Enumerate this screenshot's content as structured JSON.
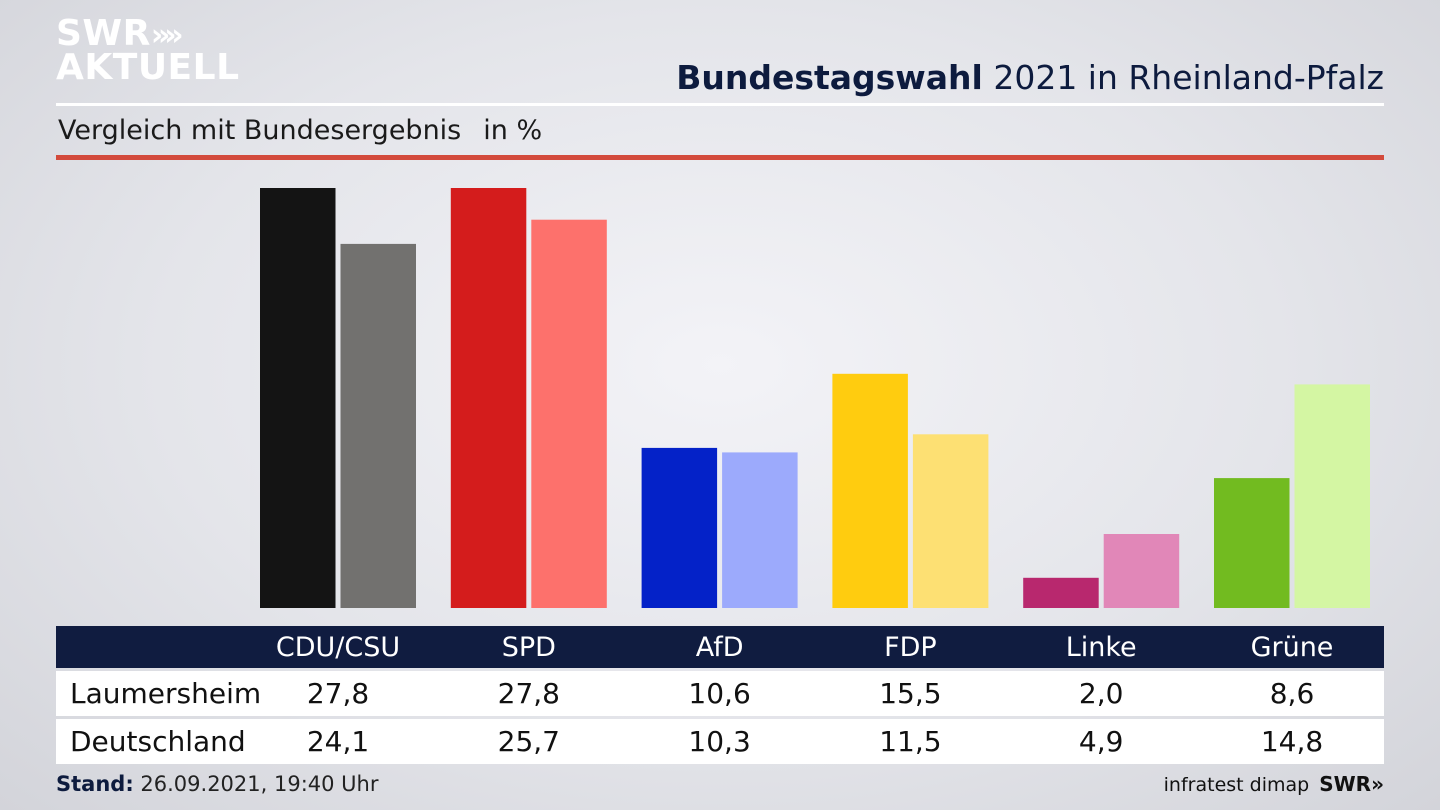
{
  "logo": {
    "line1": "SWR",
    "arrows": "»",
    "line2": "AKTUELL"
  },
  "title": {
    "bold": "Bundestagswahl",
    "rest": " 2021 in Rheinland-Pfalz"
  },
  "subtitle": "Vergleich mit Bundesergebnis",
  "unit": "in %",
  "chart_data": {
    "type": "bar",
    "categories": [
      "CDU/CSU",
      "SPD",
      "AfD",
      "FDP",
      "Linke",
      "Grüne"
    ],
    "series": [
      {
        "name": "Laumersheim",
        "values": [
          27.8,
          27.8,
          10.6,
          15.5,
          2.0,
          8.6
        ],
        "colors": [
          "#141414",
          "#d41c1c",
          "#0422c8",
          "#ffcc0f",
          "#b8286e",
          "#72bb20"
        ]
      },
      {
        "name": "Deutschland",
        "values": [
          24.1,
          25.7,
          10.3,
          11.5,
          4.9,
          14.8
        ],
        "colors": [
          "#72716f",
          "#fd716c",
          "#9caafc",
          "#fde073",
          "#e187b8",
          "#d4f6a3"
        ]
      }
    ],
    "ylim": [
      0,
      27.8
    ]
  },
  "table": {
    "rows": [
      {
        "label": "Laumersheim",
        "values": [
          "27,8",
          "27,8",
          "10,6",
          "15,5",
          "2,0",
          "8,6"
        ]
      },
      {
        "label": "Deutschland",
        "values": [
          "24,1",
          "25,7",
          "10,3",
          "11,5",
          "4,9",
          "14,8"
        ]
      }
    ]
  },
  "footer": {
    "stand_label": "Stand:",
    "stand_value": " 26.09.2021, 19:40 Uhr",
    "source": "infratest dimap",
    "brand": "SWR»"
  }
}
